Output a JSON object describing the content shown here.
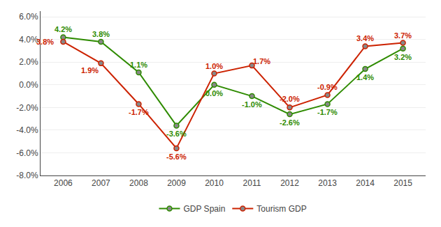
{
  "chart_data": {
    "type": "line",
    "x": [
      2006,
      2007,
      2008,
      2009,
      2010,
      2011,
      2012,
      2013,
      2014,
      2015
    ],
    "series": [
      {
        "name": "GDP Spain",
        "color": "#2E8B00",
        "values": [
          4.2,
          3.8,
          1.1,
          -3.6,
          0.0,
          -1.0,
          -2.6,
          -1.7,
          1.4,
          3.2
        ],
        "value_labels": [
          "4.2%",
          "3.8%",
          "1.1%",
          "-3.6%",
          "0.0%",
          "-1.0%",
          "-2.6%",
          "-1.7%",
          "1.4%",
          "3.2%"
        ]
      },
      {
        "name": "Tourism GDP",
        "color": "#CC2200",
        "values": [
          3.8,
          1.9,
          -1.7,
          -5.6,
          1.0,
          1.7,
          -2.0,
          -0.9,
          3.4,
          3.7
        ],
        "value_labels": [
          "3.8%",
          "1.9%",
          "-1.7%",
          "-5.6%",
          "1.0%",
          "1.7%",
          "-2.0%",
          "-0.9%",
          "3.4%",
          "3.7%"
        ]
      }
    ],
    "xlim": [
      2005.4,
      2015.6
    ],
    "xticks": [
      2006,
      2007,
      2008,
      2009,
      2010,
      2011,
      2012,
      2013,
      2014,
      2015
    ],
    "ylim": [
      -8.0,
      6.5
    ],
    "yticks": [
      {
        "value": -8.0,
        "label": "-8.0%"
      },
      {
        "value": -6.0,
        "label": "-6.0%"
      },
      {
        "value": -4.0,
        "label": "-4.0%"
      },
      {
        "value": -2.0,
        "label": "-2.0%"
      },
      {
        "value": 0.0,
        "label": "0.0%"
      },
      {
        "value": 2.0,
        "label": "2.0%"
      },
      {
        "value": 4.0,
        "label": "4.0%"
      },
      {
        "value": 6.0,
        "label": "6.0%"
      }
    ],
    "grid": true,
    "legend": "bottom",
    "data_labels": true,
    "marker": "circle"
  }
}
